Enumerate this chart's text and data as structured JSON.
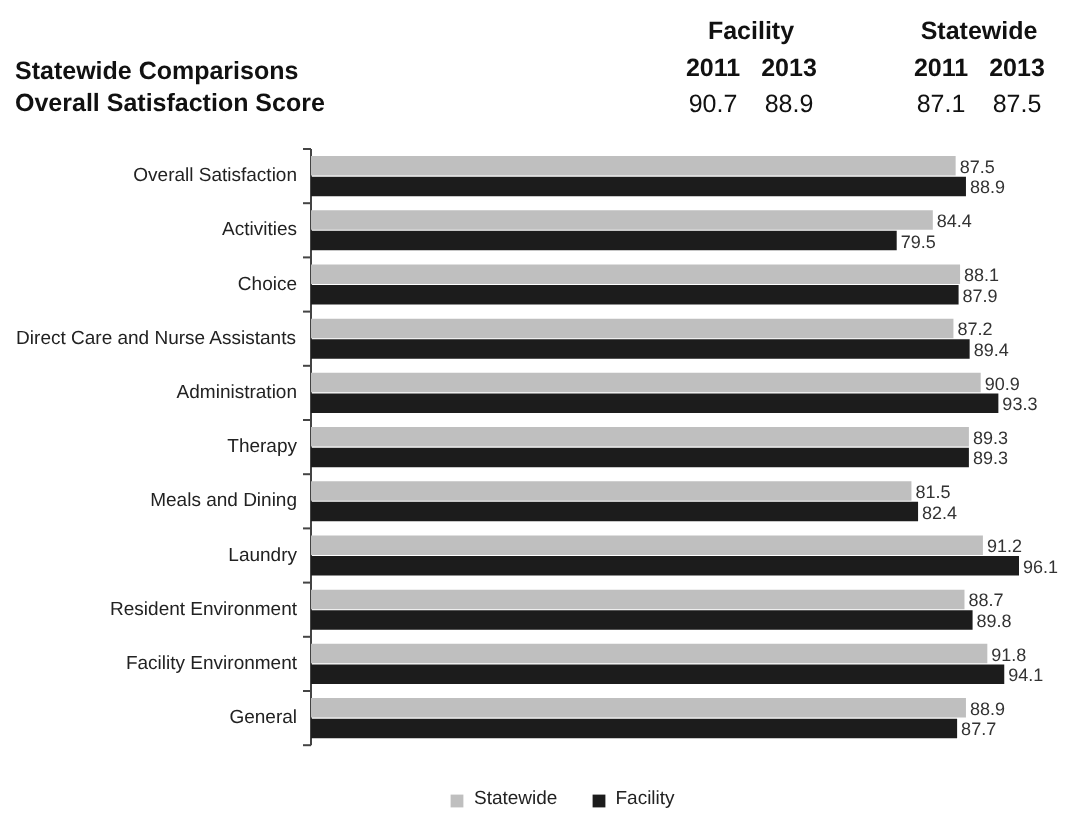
{
  "chart_data": {
    "type": "bar",
    "orientation": "horizontal",
    "title": "Statewide Comparisons",
    "subtitle": "Overall Satisfaction Score",
    "categories": [
      "Overall Satisfaction",
      "Activities",
      "Choice",
      "Direct Care and Nurse Assistants",
      "Administration",
      "Therapy",
      "Meals and Dining",
      "Laundry",
      "Resident Environment",
      "Facility Environment",
      "General"
    ],
    "series": [
      {
        "name": "Statewide",
        "color": "#bfbfbf",
        "values": [
          87.5,
          84.4,
          88.1,
          87.2,
          90.9,
          89.3,
          81.5,
          91.2,
          88.7,
          91.8,
          88.9
        ]
      },
      {
        "name": "Facility",
        "color": "#1c1c1c",
        "values": [
          88.9,
          79.5,
          87.9,
          89.4,
          93.3,
          89.3,
          82.4,
          96.1,
          89.8,
          94.1,
          87.7
        ]
      }
    ],
    "data_labels": true,
    "legend": "bottom",
    "annotations": [
      "Facility",
      "2011",
      "2013",
      "90.7",
      "88.9",
      "Statewide",
      "2011",
      "2013",
      "87.1",
      "87.5"
    ]
  }
}
